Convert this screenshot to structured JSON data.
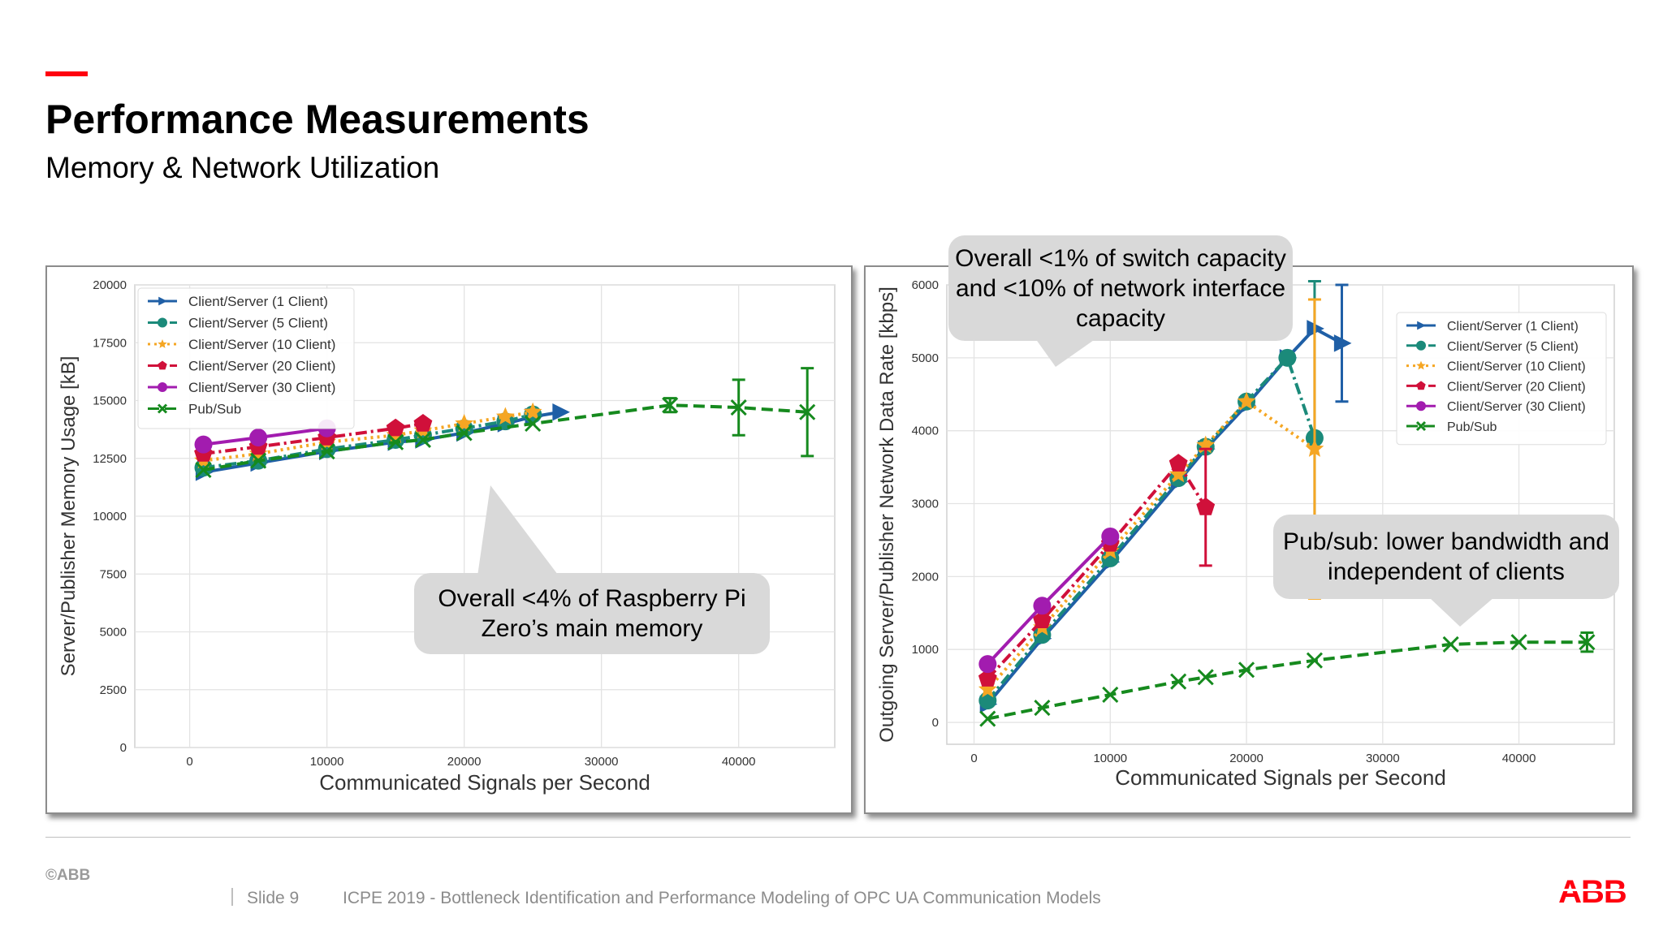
{
  "slide": {
    "title": "Performance Measurements",
    "subtitle": "Memory & Network Utilization",
    "accent_color": "#ff000f",
    "callouts": {
      "memory": "Overall <4% of Raspberry Pi Zero’s main memory",
      "switch": "Overall <1% of switch capacity and <10% of network interface capacity",
      "pubsub": "Pub/sub: lower bandwidth and independent of clients"
    },
    "footer": {
      "copyright": "©ABB",
      "slide_label": "Slide 9",
      "text": "ICPE 2019 - Bottleneck Identification and Performance Modeling of OPC UA Communication Models",
      "logo_text": "ABB"
    }
  },
  "chart_data": [
    {
      "type": "line",
      "title": "",
      "xlabel": "Communicated Signals per Second",
      "ylabel": "Server/Publisher Memory Usage [kB]",
      "xlim": [
        -4000,
        47000
      ],
      "ylim": [
        0,
        20000
      ],
      "xticks": [
        0,
        10000,
        20000,
        30000,
        40000
      ],
      "yticks": [
        0,
        2500,
        5000,
        7500,
        10000,
        12500,
        15000,
        17500,
        20000
      ],
      "grid": true,
      "legend_position": "top-left",
      "series": [
        {
          "name": "Client/Server (1 Client)",
          "color": "#1f5fa6",
          "dash": "solid",
          "marker": "triangle-right",
          "x": [
            1000,
            5000,
            10000,
            15000,
            17000,
            20000,
            23000,
            25000,
            27000
          ],
          "y": [
            11900,
            12300,
            12800,
            13200,
            13300,
            13600,
            14000,
            14300,
            14500
          ]
        },
        {
          "name": "Client/Server (5 Client)",
          "color": "#1b8a7a",
          "dash": "dashdot",
          "marker": "circle",
          "x": [
            1000,
            5000,
            10000,
            15000,
            17000,
            20000,
            23000,
            25000
          ],
          "y": [
            12100,
            12400,
            12900,
            13300,
            13500,
            13800,
            14100,
            14400
          ]
        },
        {
          "name": "Client/Server (10 Client)",
          "color": "#f5a623",
          "dash": "dotted",
          "marker": "star",
          "x": [
            1000,
            5000,
            10000,
            15000,
            17000,
            20000,
            23000,
            25000
          ],
          "y": [
            12400,
            12700,
            13200,
            13500,
            13700,
            14000,
            14300,
            14500
          ]
        },
        {
          "name": "Client/Server (20 Client)",
          "color": "#d0103a",
          "dash": "dashdot",
          "marker": "pentagon",
          "x": [
            1000,
            5000,
            10000,
            15000,
            17000
          ],
          "y": [
            12700,
            13000,
            13400,
            13800,
            14000
          ]
        },
        {
          "name": "Client/Server (30 Client)",
          "color": "#a21caf",
          "dash": "solid",
          "marker": "circle",
          "x": [
            1000,
            5000,
            10000
          ],
          "y": [
            13100,
            13400,
            13800
          ]
        },
        {
          "name": "Pub/Sub",
          "color": "#168a1e",
          "dash": "dashed",
          "marker": "x",
          "x": [
            1000,
            5000,
            10000,
            15000,
            17000,
            20000,
            25000,
            35000,
            40000,
            45000
          ],
          "y": [
            12000,
            12400,
            12800,
            13200,
            13300,
            13600,
            14000,
            14800,
            14700,
            14500
          ],
          "yerr": [
            0,
            0,
            0,
            0,
            0,
            0,
            0,
            300,
            1200,
            1900
          ]
        }
      ]
    },
    {
      "type": "line",
      "title": "",
      "xlabel": "Communicated Signals per Second",
      "ylabel": "Outgoing Server/Publisher Network Data Rate [kbps]",
      "xlim": [
        -2000,
        47000
      ],
      "ylim": [
        -300,
        6000
      ],
      "xticks": [
        0,
        10000,
        20000,
        30000,
        40000
      ],
      "yticks": [
        0,
        1000,
        2000,
        3000,
        4000,
        5000,
        6000
      ],
      "grid": true,
      "legend_position": "top-right",
      "series": [
        {
          "name": "Client/Server (1 Client)",
          "color": "#1f5fa6",
          "dash": "solid",
          "marker": "triangle-right",
          "x": [
            1000,
            5000,
            10000,
            15000,
            17000,
            20000,
            23000,
            25000,
            27000
          ],
          "y": [
            250,
            1150,
            2200,
            3300,
            3750,
            4350,
            5000,
            5400,
            5200
          ],
          "yerr": [
            0,
            0,
            0,
            0,
            0,
            0,
            0,
            0,
            800
          ]
        },
        {
          "name": "Client/Server (5 Client)",
          "color": "#1b8a7a",
          "dash": "dashdot",
          "marker": "circle",
          "x": [
            1000,
            5000,
            10000,
            15000,
            17000,
            20000,
            23000,
            25000
          ],
          "y": [
            300,
            1200,
            2250,
            3350,
            3780,
            4400,
            5000,
            3900
          ],
          "yerr": [
            0,
            0,
            0,
            0,
            0,
            0,
            0,
            2150
          ]
        },
        {
          "name": "Client/Server (10 Client)",
          "color": "#f5a623",
          "dash": "dotted",
          "marker": "star",
          "x": [
            1000,
            5000,
            10000,
            15000,
            17000,
            20000,
            25000
          ],
          "y": [
            450,
            1300,
            2350,
            3400,
            3800,
            4400,
            3750
          ],
          "yerr": [
            0,
            0,
            0,
            0,
            0,
            0,
            2050
          ]
        },
        {
          "name": "Client/Server (20 Client)",
          "color": "#d0103a",
          "dash": "dashdot",
          "marker": "pentagon",
          "x": [
            1000,
            5000,
            10000,
            15000,
            17000
          ],
          "y": [
            600,
            1400,
            2450,
            3550,
            2950
          ],
          "yerr": [
            0,
            0,
            0,
            0,
            800
          ]
        },
        {
          "name": "Client/Server (30 Client)",
          "color": "#a21caf",
          "dash": "solid",
          "marker": "circle",
          "x": [
            1000,
            5000,
            10000
          ],
          "y": [
            800,
            1600,
            2550
          ]
        },
        {
          "name": "Pub/Sub",
          "color": "#168a1e",
          "dash": "dashed",
          "marker": "x",
          "x": [
            1000,
            5000,
            10000,
            15000,
            17000,
            20000,
            25000,
            35000,
            40000,
            45000
          ],
          "y": [
            50,
            200,
            380,
            560,
            620,
            720,
            850,
            1070,
            1100,
            1100
          ],
          "yerr": [
            0,
            0,
            0,
            0,
            0,
            0,
            0,
            0,
            0,
            130
          ]
        }
      ]
    }
  ]
}
